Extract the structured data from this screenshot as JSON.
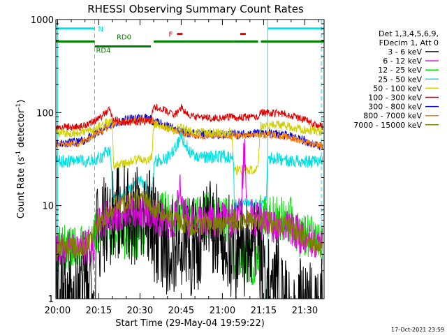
{
  "chart_data": {
    "type": "line",
    "title": "RHESSI Observing Summary Count Rates",
    "xlabel": "Start Time (29-May-04 19:59:22)",
    "ylabel_main": "Count Rate (s",
    "ylabel_sup1": "-1",
    "ylabel_mid": " detector",
    "ylabel_sup2": "-1",
    "ylabel_end": ")",
    "x_unit": "minutes since 20:00",
    "xlim": [
      -0.6,
      97
    ],
    "ylim": [
      1,
      1000
    ],
    "yscale": "log",
    "x_ticks": [
      {
        "v": 0,
        "label": "20:00"
      },
      {
        "v": 15,
        "label": "20:15"
      },
      {
        "v": 30,
        "label": "20:30"
      },
      {
        "v": 45,
        "label": "20:45"
      },
      {
        "v": 60,
        "label": "21:00"
      },
      {
        "v": 75,
        "label": "21:15"
      },
      {
        "v": 90,
        "label": "21:30"
      }
    ],
    "y_ticks": [
      {
        "v": 1,
        "label": "1"
      },
      {
        "v": 10,
        "label": "10"
      },
      {
        "v": 100,
        "label": "100"
      },
      {
        "v": 1000,
        "label": "1000"
      }
    ],
    "legend": {
      "header": [
        "Det 1,3,4,5,6,9,",
        "FDecim 1, Att 0"
      ],
      "position": "right"
    },
    "series": [
      {
        "name": "3 - 6 keV",
        "color": "#000000"
      },
      {
        "name": "6 - 12 keV",
        "color": "#e000e0"
      },
      {
        "name": "12 - 25 keV",
        "color": "#00e000"
      },
      {
        "name": "25 - 50 keV",
        "color": "#00e0e0"
      },
      {
        "name": "50 - 100 keV",
        "color": "#d0d000"
      },
      {
        "name": "100 - 300 keV",
        "color": "#e00000"
      },
      {
        "name": "300 - 800 keV",
        "color": "#0000e0"
      },
      {
        "name": "800 - 7000 keV",
        "color": "#ff8000"
      },
      {
        "name": "7000 - 15000 keV",
        "color": "#808000"
      }
    ],
    "annotations": {
      "N": {
        "label": "N",
        "color": "#00e0e0",
        "x_start": -0.6,
        "x_end": 13.5,
        "level": 800
      },
      "N_right": {
        "x_start": 76.5,
        "x_end": 97,
        "level": 800
      },
      "flare": {
        "label": "F",
        "color": "#e00000",
        "segments": [
          [
            43.5,
            45.5
          ],
          [
            66.5,
            68.5
          ]
        ],
        "level": 700
      },
      "rd_bar": {
        "color": "#008000",
        "level": 580,
        "segments": [
          [
            -0.6,
            13.5
          ],
          [
            13.5,
            21
          ],
          [
            21,
            34
          ],
          [
            35,
            64
          ],
          [
            64,
            73
          ],
          [
            74,
            97
          ]
        ]
      },
      "RD4": {
        "label": "RD4",
        "x": 14
      },
      "RD0": {
        "label": "RD0",
        "x": 21.5
      },
      "saa_lines": [
        0,
        76.5
      ],
      "night_lines": [
        13.5,
        96
      ]
    }
  },
  "footer": {
    "timestamp": "17-Oct-2021 23:59"
  }
}
